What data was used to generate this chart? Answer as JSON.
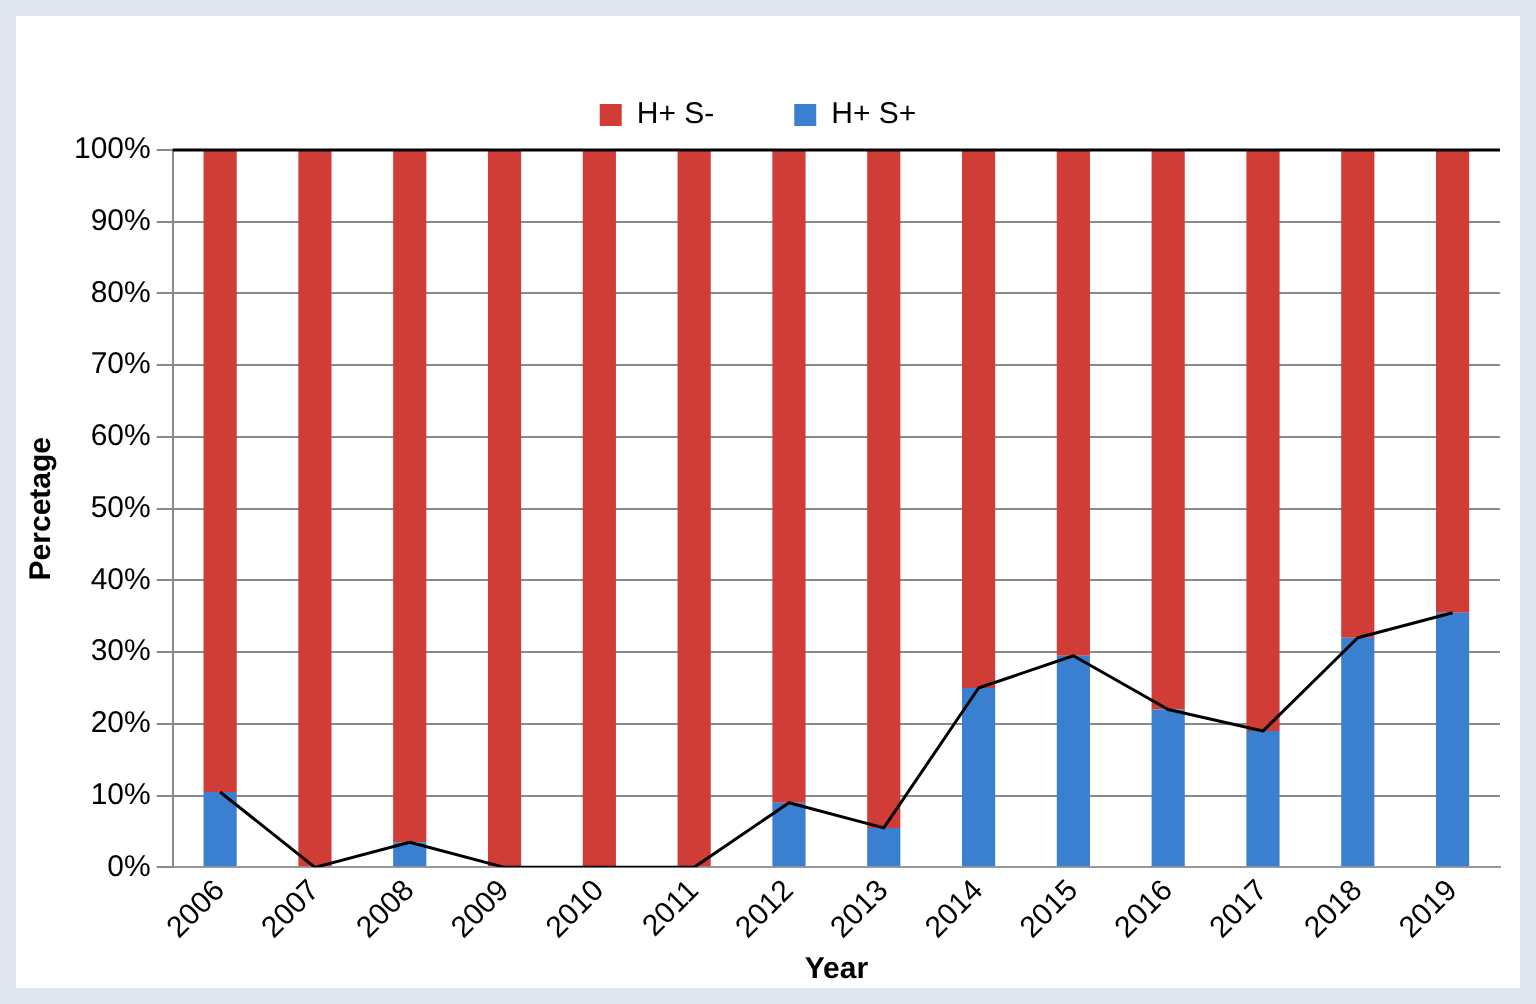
{
  "chart_data": {
    "type": "bar",
    "stacked": true,
    "xlabel": "Year",
    "ylabel": "Percetage",
    "categories": [
      "2006",
      "2007",
      "2008",
      "2009",
      "2010",
      "2011",
      "2012",
      "2013",
      "2014",
      "2015",
      "2016",
      "2017",
      "2018",
      "2019"
    ],
    "series": [
      {
        "name": "H+ S+",
        "color": "#3b7fd0",
        "values": [
          10.5,
          0,
          3.5,
          0,
          0,
          0,
          9,
          5.5,
          25,
          29.5,
          22,
          19,
          32,
          35.5
        ]
      },
      {
        "name": "H+ S-",
        "color": "#d03c36",
        "values": [
          89.5,
          100,
          96.5,
          100,
          100,
          100,
          91,
          94.5,
          75,
          70.5,
          78,
          81,
          68,
          64.5
        ]
      },
      {
        "type": "line",
        "color": "#000000",
        "values": [
          10.5,
          0,
          3.5,
          0,
          0,
          0,
          9,
          5.5,
          25,
          29.5,
          22,
          19,
          32,
          35.5
        ]
      }
    ],
    "ylim": [
      0,
      100
    ],
    "yticks": [
      {
        "value": 0,
        "label": "0%"
      },
      {
        "value": 10,
        "label": "10%"
      },
      {
        "value": 20,
        "label": "20%"
      },
      {
        "value": 30,
        "label": "30%"
      },
      {
        "value": 40,
        "label": "40%"
      },
      {
        "value": 50,
        "label": "50%"
      },
      {
        "value": 60,
        "label": "60%"
      },
      {
        "value": 70,
        "label": "70%"
      },
      {
        "value": 80,
        "label": "80%"
      },
      {
        "value": 90,
        "label": "90%"
      },
      {
        "value": 100,
        "label": "100%"
      }
    ],
    "ref_lines": [
      {
        "axis": "y",
        "value": 100,
        "color": "#000000"
      }
    ],
    "grid": "y",
    "legend": "top",
    "marker": "none"
  }
}
